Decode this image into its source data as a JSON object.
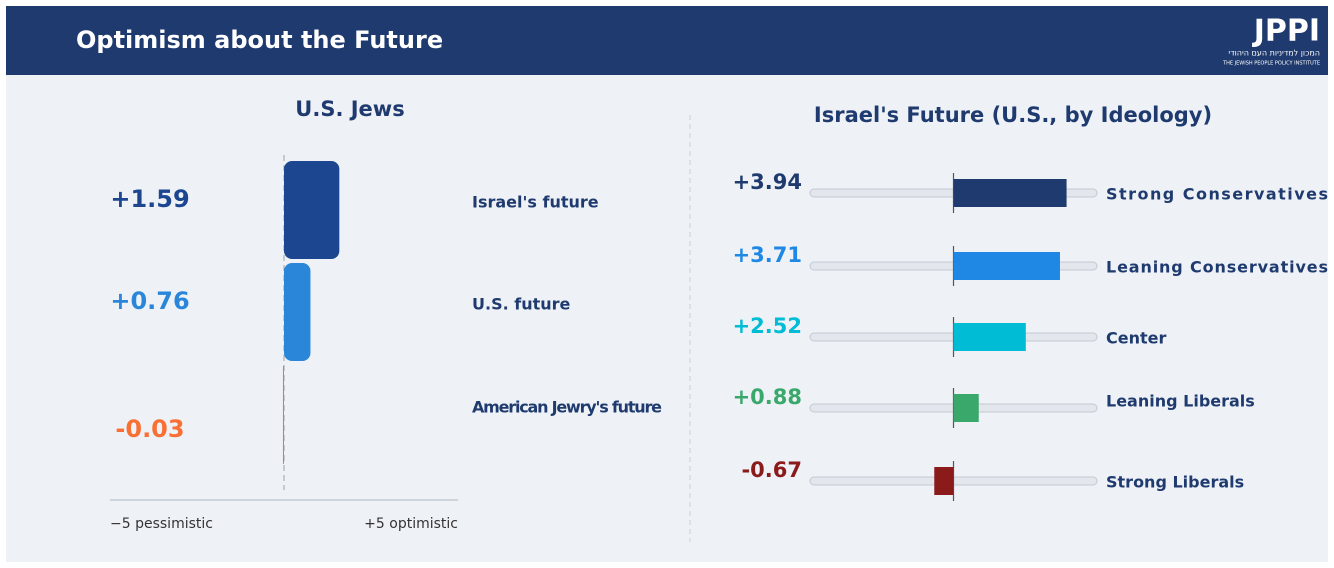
{
  "header": {
    "title": "Optimism about the Future",
    "logo": "JPPI",
    "logo_hebrew": "המכון למדיניות העם היהודי",
    "logo_english": "THE JEWISH PEOPLE POLICY INSTITUTE"
  },
  "chart_data": [
    {
      "type": "hbar",
      "title": "U.S. Jews",
      "categories": [
        "Israel's future",
        "U.S. future",
        "American Jewry's future"
      ],
      "values": [
        1.59,
        0.76,
        -0.03
      ],
      "value_labels": [
        "+1.59",
        "+0.76",
        "-0.03"
      ],
      "colors": [
        "#1c4690",
        "#2a86d9",
        "#f97035"
      ],
      "xlim": [
        -5,
        5
      ],
      "xticks": [
        {
          "value": -5,
          "label": "−5 pessimistic"
        },
        {
          "value": 5,
          "label": "+5 optimistic"
        }
      ]
    },
    {
      "type": "track",
      "title": "Israel's Future (U.S., by Ideology)",
      "categories": [
        "Strong Conservatives",
        "Leaning Conservatives",
        "Center",
        "Leaning Liberals",
        "Strong Liberals"
      ],
      "values": [
        3.94,
        3.71,
        2.52,
        0.88,
        -0.67
      ],
      "value_labels": [
        "+3.94",
        "+3.71",
        "+2.52",
        "+0.88",
        "-0.67"
      ],
      "colors": [
        "#1f3a6e",
        "#1f88e5",
        "#00bcd4",
        "#3aa86b",
        "#8b1a1a"
      ],
      "xlim": [
        -5,
        5
      ]
    }
  ]
}
